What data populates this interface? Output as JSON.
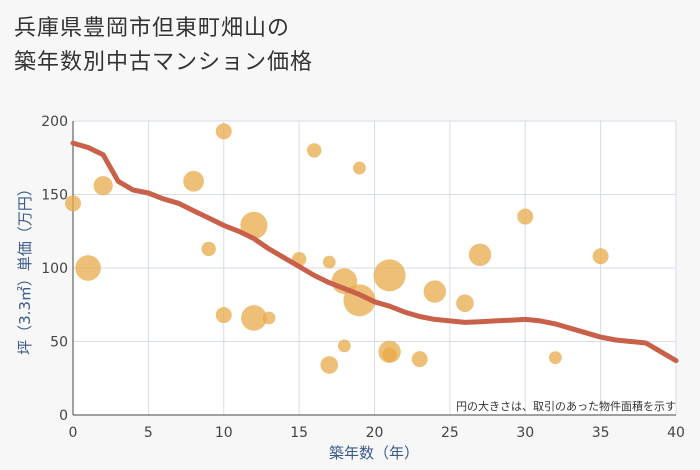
{
  "title_lines": [
    "兵庫県豊岡市但東町畑山の",
    "築年数別中古マンション価格"
  ],
  "chart_data": {
    "type": "scatter",
    "xlabel": "築年数（年）",
    "ylabel": "坪（3.3㎡）単価（万円）",
    "xlim": [
      0,
      40
    ],
    "ylim": [
      0,
      200
    ],
    "xticks": [
      0,
      5,
      10,
      15,
      20,
      25,
      30,
      35,
      40
    ],
    "yticks": [
      0,
      50,
      100,
      150,
      200
    ],
    "grid": true,
    "note": "円の大きさは、取引のあった物件面積を示す",
    "colors": {
      "point": "#e8a94a",
      "line": "#c8604a"
    },
    "scatter": [
      {
        "x": 0,
        "y": 144,
        "s": 1.0
      },
      {
        "x": 1,
        "y": 100,
        "s": 1.6
      },
      {
        "x": 2,
        "y": 156,
        "s": 1.2
      },
      {
        "x": 8,
        "y": 159,
        "s": 1.3
      },
      {
        "x": 9,
        "y": 113,
        "s": 0.9
      },
      {
        "x": 10,
        "y": 193,
        "s": 1.0
      },
      {
        "x": 10,
        "y": 68,
        "s": 1.0
      },
      {
        "x": 12,
        "y": 129,
        "s": 1.7
      },
      {
        "x": 12,
        "y": 66,
        "s": 1.6
      },
      {
        "x": 13,
        "y": 66,
        "s": 0.8
      },
      {
        "x": 15,
        "y": 106,
        "s": 0.9
      },
      {
        "x": 16,
        "y": 180,
        "s": 0.9
      },
      {
        "x": 17,
        "y": 104,
        "s": 0.8
      },
      {
        "x": 17,
        "y": 34,
        "s": 1.1
      },
      {
        "x": 18,
        "y": 91,
        "s": 1.6
      },
      {
        "x": 18,
        "y": 47,
        "s": 0.8
      },
      {
        "x": 19,
        "y": 168,
        "s": 0.8
      },
      {
        "x": 19,
        "y": 78,
        "s": 2.0
      },
      {
        "x": 21,
        "y": 95,
        "s": 2.0
      },
      {
        "x": 21,
        "y": 43,
        "s": 1.4
      },
      {
        "x": 21,
        "y": 41,
        "s": 0.9
      },
      {
        "x": 23,
        "y": 38,
        "s": 1.0
      },
      {
        "x": 24,
        "y": 84,
        "s": 1.4
      },
      {
        "x": 26,
        "y": 76,
        "s": 1.1
      },
      {
        "x": 27,
        "y": 109,
        "s": 1.4
      },
      {
        "x": 30,
        "y": 135,
        "s": 1.0
      },
      {
        "x": 32,
        "y": 39,
        "s": 0.8
      },
      {
        "x": 35,
        "y": 108,
        "s": 1.0
      }
    ],
    "trend": {
      "x": [
        0,
        1,
        2,
        3,
        4,
        5,
        6,
        7,
        8,
        9,
        10,
        11,
        12,
        13,
        14,
        15,
        16,
        17,
        18,
        19,
        20,
        21,
        22,
        23,
        24,
        25,
        26,
        27,
        28,
        29,
        30,
        31,
        32,
        33,
        34,
        35,
        36,
        37,
        38,
        39,
        40
      ],
      "y": [
        185,
        182,
        177,
        159,
        153,
        151,
        147,
        144,
        139,
        134,
        129,
        125,
        120,
        113,
        107,
        101,
        95,
        90,
        86,
        82,
        77,
        74,
        70,
        67,
        65,
        64,
        63,
        63.5,
        64,
        64.5,
        65,
        64,
        62,
        59,
        56,
        53,
        51,
        50,
        49,
        43,
        37
      ]
    }
  }
}
